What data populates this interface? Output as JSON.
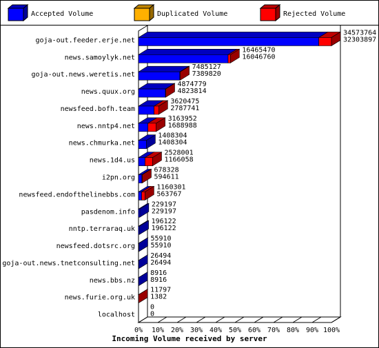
{
  "chart_data": {
    "type": "bar3d",
    "title": "Incoming Volume received by server",
    "categories": [
      "goja-out.feeder.erje.net",
      "news.samoylyk.net",
      "goja-out.news.weretis.net",
      "news.quux.org",
      "newsfeed.bofh.team",
      "news.nntp4.net",
      "news.chmurka.net",
      "news.1d4.us",
      "i2pn.org",
      "newsfeed.endofthelinebbs.com",
      "pasdenom.info",
      "nntp.terraraq.uk",
      "newsfeed.dotsrc.org",
      "goja-out.news.tnetconsulting.net",
      "news.bbs.nz",
      "news.furie.org.uk",
      "localhost"
    ],
    "totals": [
      34573764,
      16465470,
      7485127,
      4874779,
      3620475,
      3163952,
      1408304,
      2528001,
      678328,
      1160301,
      229197,
      196122,
      55910,
      26494,
      8916,
      11797,
      0
    ],
    "series": [
      {
        "name": "Accepted Volume",
        "color": "#0000ff",
        "values": [
          32303897,
          16046760,
          7389820,
          4823814,
          2787741,
          1688988,
          1408304,
          1166058,
          594611,
          563767,
          229197,
          196122,
          55910,
          26494,
          8916,
          1382,
          0
        ]
      },
      {
        "name": "Duplicated Volume",
        "color": "#ffb000",
        "values": [
          0,
          0,
          0,
          0,
          0,
          0,
          0,
          0,
          0,
          0,
          0,
          0,
          0,
          0,
          0,
          0,
          0
        ]
      },
      {
        "name": "Rejected Volume",
        "color": "#ff0000",
        "values": [
          2269867,
          418710,
          95307,
          50965,
          832734,
          1474964,
          0,
          1361943,
          83717,
          596534,
          0,
          0,
          0,
          0,
          0,
          10415,
          0
        ]
      }
    ],
    "xlim": [
      0,
      34573764
    ],
    "xticks": [
      {
        "value": 0,
        "label": "0%"
      },
      {
        "value": 3457376.4,
        "label": "10%"
      },
      {
        "value": 6914752.8,
        "label": "20%"
      },
      {
        "value": 10372129.2,
        "label": "30%"
      },
      {
        "value": 13829505.6,
        "label": "40%"
      },
      {
        "value": 17286882,
        "label": "50%"
      },
      {
        "value": 20744258.4,
        "label": "60%"
      },
      {
        "value": 24201634.8,
        "label": "70%"
      },
      {
        "value": 27659011.2,
        "label": "80%"
      },
      {
        "value": 31116387.6,
        "label": "90%"
      },
      {
        "value": 34573764,
        "label": "100%"
      }
    ]
  }
}
